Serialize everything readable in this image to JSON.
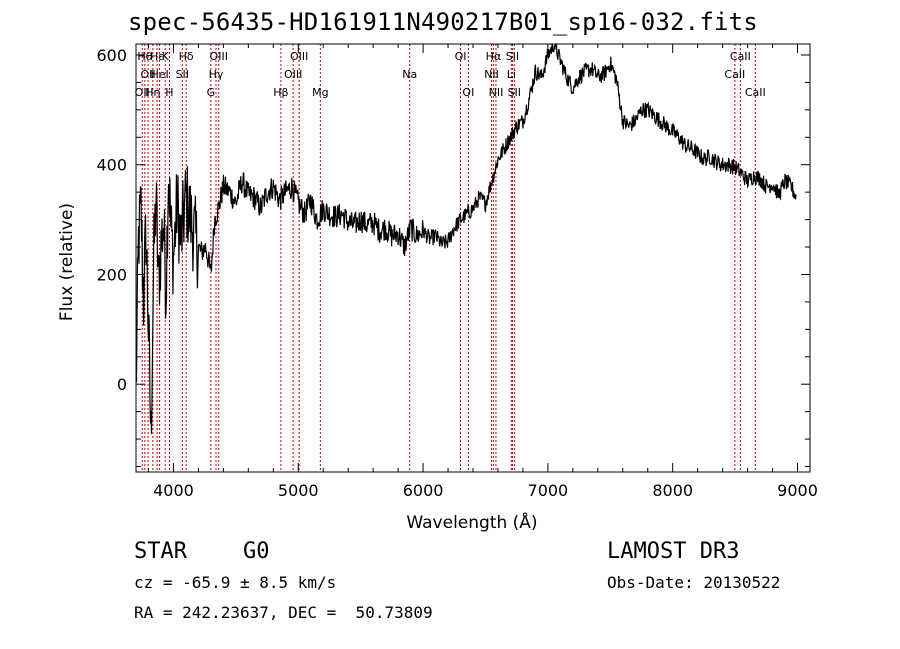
{
  "chart_data": {
    "type": "line",
    "title": "spec-56435-HD161911N490217B01_sp16-032.fits",
    "xlabel": "Wavelength (Å)",
    "ylabel": "Flux (relative)",
    "xlim": [
      3700,
      9100
    ],
    "ylim": [
      -160,
      620
    ],
    "xticks": [
      4000,
      5000,
      6000,
      7000,
      8000,
      9000
    ],
    "yticks": [
      0,
      200,
      400,
      600
    ],
    "series": [
      {
        "name": "spectrum",
        "x": [
          3700,
          3720,
          3740,
          3760,
          3780,
          3800,
          3820,
          3840,
          3860,
          3880,
          3900,
          3920,
          3940,
          3960,
          3980,
          4000,
          4030,
          4060,
          4100,
          4140,
          4180,
          4220,
          4260,
          4300,
          4330,
          4360,
          4400,
          4450,
          4500,
          4550,
          4600,
          4650,
          4700,
          4750,
          4800,
          4850,
          4900,
          4950,
          5000,
          5050,
          5100,
          5150,
          5200,
          5250,
          5300,
          5350,
          5400,
          5450,
          5500,
          5550,
          5600,
          5650,
          5700,
          5750,
          5800,
          5850,
          5900,
          5950,
          6000,
          6050,
          6100,
          6150,
          6200,
          6250,
          6300,
          6350,
          6400,
          6450,
          6500,
          6550,
          6600,
          6650,
          6700,
          6750,
          6800,
          6850,
          6900,
          6950,
          7000,
          7050,
          7100,
          7150,
          7200,
          7250,
          7300,
          7350,
          7400,
          7450,
          7500,
          7550,
          7600,
          7650,
          7700,
          7750,
          7800,
          7850,
          7900,
          7950,
          8000,
          8050,
          8100,
          8150,
          8200,
          8250,
          8300,
          8350,
          8400,
          8450,
          8500,
          8550,
          8600,
          8650,
          8700,
          8750,
          8800,
          8850,
          8900,
          8950,
          8990
        ],
        "values": [
          -20,
          260,
          320,
          150,
          280,
          100,
          -100,
          210,
          340,
          180,
          250,
          300,
          170,
          400,
          280,
          230,
          330,
          260,
          340,
          300,
          260,
          240,
          250,
          200,
          300,
          320,
          360,
          350,
          330,
          370,
          345,
          340,
          320,
          350,
          360,
          335,
          350,
          360,
          330,
          310,
          335,
          300,
          320,
          310,
          305,
          310,
          295,
          290,
          300,
          290,
          295,
          280,
          285,
          270,
          275,
          250,
          285,
          270,
          280,
          265,
          270,
          255,
          260,
          285,
          300,
          310,
          320,
          340,
          330,
          370,
          410,
          430,
          450,
          470,
          480,
          520,
          570,
          560,
          600,
          620,
          590,
          560,
          540,
          560,
          570,
          575,
          560,
          565,
          585,
          555,
          480,
          470,
          480,
          500,
          500,
          490,
          480,
          470,
          460,
          450,
          435,
          430,
          420,
          410,
          415,
          405,
          400,
          400,
          395,
          385,
          370,
          380,
          375,
          360,
          365,
          345,
          370,
          360,
          340
        ]
      }
    ],
    "lines": [
      {
        "wavelength": 3750,
        "label": "OII",
        "row": 2
      },
      {
        "wavelength": 3771,
        "label": "Hθ",
        "row": 0
      },
      {
        "wavelength": 3797,
        "label": "OII",
        "row": 1
      },
      {
        "wavelength": 3835,
        "label": "Hη",
        "row": 2
      },
      {
        "wavelength": 3869,
        "label": "Hε",
        "row": 0
      },
      {
        "wavelength": 3889,
        "label": "HeI",
        "row": 1
      },
      {
        "wavelength": 3934,
        "label": "K",
        "row": 0
      },
      {
        "wavelength": 3968,
        "label": "H",
        "row": 2
      },
      {
        "wavelength": 4071,
        "label": "SII",
        "row": 1
      },
      {
        "wavelength": 4102,
        "label": "Hδ",
        "row": 0
      },
      {
        "wavelength": 4300,
        "label": "G",
        "row": 2
      },
      {
        "wavelength": 4341,
        "label": "Hγ",
        "row": 1
      },
      {
        "wavelength": 4363,
        "label": "OIII",
        "row": 0
      },
      {
        "wavelength": 4861,
        "label": "Hβ",
        "row": 2
      },
      {
        "wavelength": 4959,
        "label": "OIII",
        "row": 1
      },
      {
        "wavelength": 5007,
        "label": "OIII",
        "row": 0
      },
      {
        "wavelength": 5177,
        "label": "Mg",
        "row": 2
      },
      {
        "wavelength": 5893,
        "label": "Na",
        "row": 1
      },
      {
        "wavelength": 6300,
        "label": "OI",
        "row": 0
      },
      {
        "wavelength": 6363,
        "label": "OI",
        "row": 2
      },
      {
        "wavelength": 6548,
        "label": "NII",
        "row": 1
      },
      {
        "wavelength": 6563,
        "label": "Hα",
        "row": 0
      },
      {
        "wavelength": 6584,
        "label": "NII",
        "row": 2
      },
      {
        "wavelength": 6707,
        "label": "Li",
        "row": 1
      },
      {
        "wavelength": 6716,
        "label": "SII",
        "row": 0
      },
      {
        "wavelength": 6731,
        "label": "SII",
        "row": 2
      },
      {
        "wavelength": 8498,
        "label": "CaII",
        "row": 1
      },
      {
        "wavelength": 8542,
        "label": "CaII",
        "row": 0
      },
      {
        "wavelength": 8662,
        "label": "CaII",
        "row": 2
      }
    ]
  },
  "info": {
    "object_class": "STAR",
    "subclass": "G0",
    "survey": "LAMOST DR3",
    "cz": "cz = -65.9 ± 8.5 km/s",
    "obs_date": "Obs-Date: 20130522",
    "coords": "RA = 242.23637, DEC =  50.73809"
  }
}
